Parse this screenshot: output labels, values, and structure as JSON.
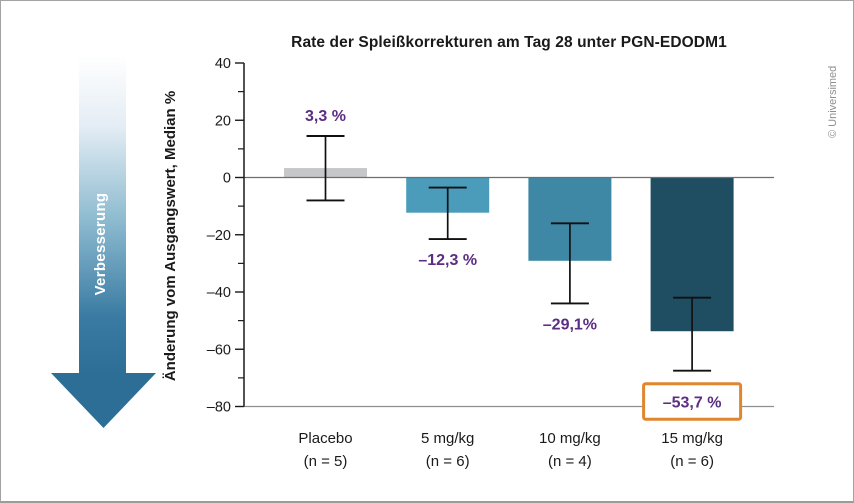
{
  "watermark": "© Universimed",
  "side_arrow": {
    "label": "Verbesserung",
    "gradient": [
      "#ffffff",
      "#e4edf4",
      "#8cbacf",
      "#3a7ba3",
      "#2d6e97"
    ],
    "head_color": "#2d6e97"
  },
  "chart_data": {
    "type": "bar",
    "title": "Rate der Spleißkorrekturen am Tag 28 unter PGN-EDODM1",
    "ylabel": "Änderung vom Ausgangswert, Median %",
    "ylim": [
      -80,
      40
    ],
    "ytick_major": [
      40,
      20,
      0,
      -20,
      -40,
      -60,
      -80
    ],
    "ytick_minor": [
      30,
      10,
      -10,
      -30,
      -50,
      -70
    ],
    "grid": "off",
    "categories": [
      "Placebo",
      "5 mg/kg",
      "10 mg/kg",
      "15 mg/kg"
    ],
    "group_sizes": [
      "(n = 5)",
      "(n = 6)",
      "(n = 4)",
      "(n = 6)"
    ],
    "values": [
      3.3,
      -12.3,
      -29.1,
      -53.7
    ],
    "value_labels": [
      "3,3 %",
      "–12,3 %",
      "–29,1%",
      "–53,7 %"
    ],
    "error_high": [
      14.5,
      -3.5,
      -16,
      -42
    ],
    "error_low": [
      -8,
      -21.5,
      -44,
      -67.5
    ],
    "bar_colors": [
      "#c6c7c8",
      "#4a9cba",
      "#3e87a5",
      "#1f4e62"
    ],
    "value_label_color": "#5b2d83",
    "axis_color": "#1a1a1a",
    "zero_line_color": "#6e6e6e",
    "baseline_color": "#8f8f8f",
    "error_bar_color": "#111111",
    "highlight": {
      "index": 3,
      "box_color": "#e0862f",
      "box_fill": "#ffffff"
    }
  }
}
